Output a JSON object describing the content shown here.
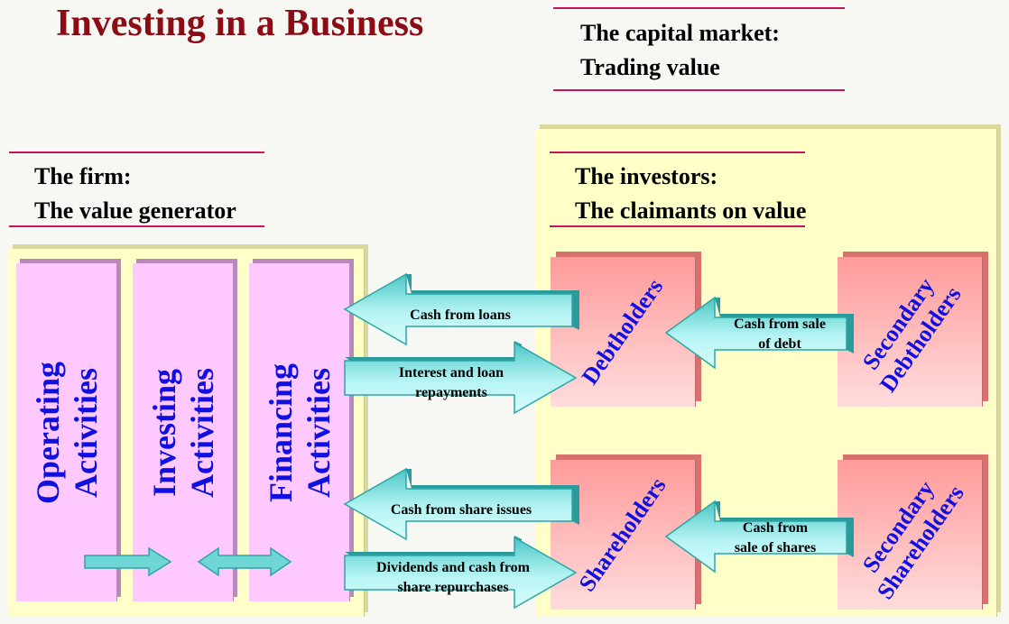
{
  "title": "Investing in a Business",
  "capital_market": {
    "line1": "The capital market:",
    "line2": "Trading value"
  },
  "firm": {
    "line1": "The firm:",
    "line2": "The value generator"
  },
  "investors": {
    "line1": "The investors:",
    "line2": "The claimants on value"
  },
  "activities": [
    {
      "line1": "Operating",
      "line2": "Activities"
    },
    {
      "line1": "Investing",
      "line2": "Activities"
    },
    {
      "line1": "Financing",
      "line2": "Activities"
    }
  ],
  "claimants": {
    "debtholders": "Debtholders",
    "shareholders": "Shareholders",
    "secondary_debtholders": {
      "line1": "Secondary",
      "line2": "Debtholders"
    },
    "secondary_shareholders": {
      "line1": "Secondary",
      "line2": "Shareholders"
    }
  },
  "flows": {
    "cash_from_loans": "Cash from loans",
    "interest_repayments": {
      "line1": "Interest and loan",
      "line2": "repayments"
    },
    "cash_from_share_issues": "Cash from share issues",
    "dividends": {
      "line1": "Dividends and cash from",
      "line2": "share repurchases"
    },
    "sale_of_debt": {
      "line1": "Cash from sale",
      "line2": "of debt"
    },
    "sale_of_shares": {
      "line1": "Cash from",
      "line2": "sale of shares"
    }
  },
  "colors": {
    "title": "#8b0c14",
    "rule": "#c8145a",
    "arrow_light": "#a8f0f0",
    "arrow_dark": "#2aa6a6",
    "activity_text": "#1010e0"
  }
}
